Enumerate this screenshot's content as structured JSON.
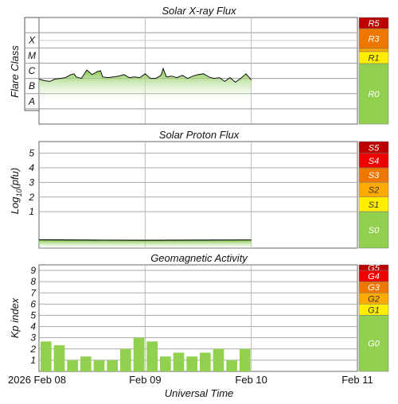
{
  "x_axis": {
    "label": "Universal Time",
    "ticks": [
      {
        "pos": 0.0,
        "label": "2026 Feb 08"
      },
      {
        "pos": 1.0,
        "label": "Feb 09"
      },
      {
        "pos": 2.0,
        "label": "Feb 10"
      },
      {
        "pos": 3.0,
        "label": "Feb 11"
      }
    ],
    "range_days": [
      0,
      3
    ]
  },
  "chart_data": [
    {
      "type": "area",
      "title": "Solar X-ray Flux",
      "ylabel": "Flare Class",
      "y_scale": "log",
      "ylim_log10": [
        -9,
        -2
      ],
      "class_labels": [
        "A",
        "B",
        "C",
        "M",
        "X"
      ],
      "class_log10": [
        -8,
        -7,
        -6,
        -5,
        -4
      ],
      "x_days": [
        0.0,
        0.05,
        0.1,
        0.15,
        0.2,
        0.25,
        0.3,
        0.33,
        0.35,
        0.4,
        0.45,
        0.5,
        0.55,
        0.58,
        0.6,
        0.65,
        0.7,
        0.75,
        0.8,
        0.85,
        0.9,
        0.95,
        1.0,
        1.05,
        1.1,
        1.15,
        1.17,
        1.2,
        1.25,
        1.3,
        1.35,
        1.4,
        1.45,
        1.5,
        1.55,
        1.6,
        1.65,
        1.7,
        1.75,
        1.8,
        1.85,
        1.9,
        1.95,
        2.0
      ],
      "log10_flux": [
        -6.05,
        -6.15,
        -6.2,
        -6.05,
        -6.0,
        -5.95,
        -5.75,
        -5.7,
        -5.9,
        -6.0,
        -5.45,
        -5.75,
        -5.55,
        -5.5,
        -5.9,
        -5.95,
        -5.9,
        -5.85,
        -5.75,
        -5.95,
        -5.9,
        -5.95,
        -5.7,
        -6.0,
        -6.0,
        -5.8,
        -5.35,
        -5.9,
        -5.85,
        -5.95,
        -5.8,
        -6.0,
        -5.85,
        -5.75,
        -5.7,
        -5.9,
        -6.0,
        -5.95,
        -6.2,
        -5.95,
        -6.25,
        -6.0,
        -5.7,
        -6.1
      ],
      "scale": [
        {
          "label": "R5",
          "color": "#bb0000"
        },
        {
          "label": "R3",
          "color": "#ee7700"
        },
        {
          "label": "R1",
          "color": "#ffee00"
        },
        {
          "label": "R0",
          "color": "#92d050"
        }
      ]
    },
    {
      "type": "area",
      "title": "Solar Proton Flux",
      "ylabel": "Log10(pfu)",
      "ylabel_main": "Log",
      "ylabel_sub": "10",
      "ylabel_tail": "(pfu)",
      "y_ticks": [
        1,
        2,
        3,
        4,
        5
      ],
      "ylim": [
        -1.5,
        5.8
      ],
      "x_days": [
        0.0,
        0.5,
        1.0,
        1.5,
        2.0
      ],
      "log10_pfu": [
        -0.93,
        -0.95,
        -0.96,
        -0.95,
        -0.94
      ],
      "scale": [
        {
          "label": "S5",
          "color": "#bb0000"
        },
        {
          "label": "S4",
          "color": "#ee0000"
        },
        {
          "label": "S3",
          "color": "#ee7700"
        },
        {
          "label": "S2",
          "color": "#ffaa00"
        },
        {
          "label": "S1",
          "color": "#ffee00"
        },
        {
          "label": "S0",
          "color": "#92d050"
        }
      ]
    },
    {
      "type": "bar",
      "title": "Geomagnetic Activity",
      "ylabel": "Kp index",
      "y_ticks": [
        1,
        2,
        3,
        4,
        5,
        6,
        7,
        8,
        9
      ],
      "ylim": [
        0,
        9.5
      ],
      "bar_width_days": 0.125,
      "x_start_days": [
        0.0,
        0.125,
        0.25,
        0.375,
        0.5,
        0.625,
        0.75,
        0.875,
        1.0,
        1.125,
        1.25,
        1.375,
        1.5,
        1.625,
        1.75,
        1.875
      ],
      "kp": [
        2.67,
        2.33,
        1.0,
        1.33,
        1.0,
        1.0,
        2.0,
        3.0,
        2.67,
        1.33,
        1.67,
        1.33,
        1.67,
        2.0,
        1.0,
        2.0
      ],
      "bar_color": "#92d050",
      "scale": [
        {
          "label": "G5",
          "color": "#bb0000"
        },
        {
          "label": "G4",
          "color": "#ee0000"
        },
        {
          "label": "G3",
          "color": "#ee7700"
        },
        {
          "label": "G2",
          "color": "#ffaa00"
        },
        {
          "label": "G1",
          "color": "#ffee00"
        },
        {
          "label": "G0",
          "color": "#92d050"
        }
      ]
    }
  ]
}
